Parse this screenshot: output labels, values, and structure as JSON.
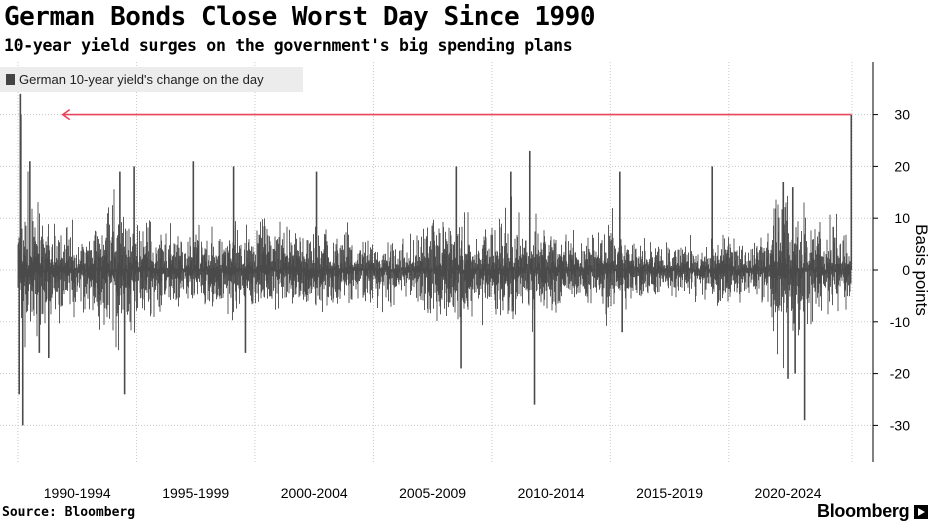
{
  "header": {
    "title": "German Bonds Close Worst Day Since 1990",
    "subtitle": "10-year yield surges on the government's big spending plans"
  },
  "footer": {
    "source": "Source: Bloomberg",
    "brand": "Bloomberg"
  },
  "colors": {
    "bars": "#4a4a4a",
    "arrow": "#e8445a",
    "grid": "#c8c8c8",
    "legend_bg": "#ececec"
  },
  "chart_data": {
    "type": "bar",
    "title": "German Bonds Close Worst Day Since 1990",
    "subtitle": "10-year yield surges on the government's big spending plans",
    "legend": [
      "German 10-year yield's change on the day"
    ],
    "ylabel": "Basis points",
    "ylim": [
      -37,
      40
    ],
    "yticks": [
      30,
      20,
      10,
      0,
      -10,
      -20,
      -30
    ],
    "x_categories": [
      "1990-1994",
      "1995-1999",
      "2000-2004",
      "2005-2009",
      "2010-2014",
      "2015-2019",
      "2020-2024"
    ],
    "x_range": [
      1990.0,
      2025.2
    ],
    "grid": true,
    "volatility_profile": [
      [
        1990.0,
        7
      ],
      [
        1990.5,
        11
      ],
      [
        1991.0,
        7
      ],
      [
        1992.0,
        5.5
      ],
      [
        1993.0,
        5
      ],
      [
        1994.0,
        9
      ],
      [
        1995.0,
        7.5
      ],
      [
        1996.0,
        5.5
      ],
      [
        1997.0,
        5
      ],
      [
        1998.0,
        5
      ],
      [
        1999.0,
        6
      ],
      [
        2000.0,
        5.5
      ],
      [
        2001.0,
        6
      ],
      [
        2002.0,
        6
      ],
      [
        2003.0,
        6
      ],
      [
        2004.0,
        5
      ],
      [
        2005.0,
        4
      ],
      [
        2006.0,
        4
      ],
      [
        2007.0,
        5
      ],
      [
        2008.0,
        7.5
      ],
      [
        2009.0,
        6.5
      ],
      [
        2010.0,
        6
      ],
      [
        2011.0,
        7.5
      ],
      [
        2012.0,
        5.5
      ],
      [
        2013.0,
        5.5
      ],
      [
        2014.0,
        4.5
      ],
      [
        2015.0,
        6.5
      ],
      [
        2016.0,
        4.5
      ],
      [
        2017.0,
        3.5
      ],
      [
        2018.0,
        3.5
      ],
      [
        2019.0,
        4
      ],
      [
        2020.0,
        5
      ],
      [
        2021.0,
        3
      ],
      [
        2022.0,
        9.5
      ],
      [
        2023.0,
        8
      ],
      [
        2024.0,
        5.5
      ],
      [
        2025.0,
        5
      ]
    ],
    "notable_moves": [
      {
        "date": 1990.05,
        "bp": -24
      },
      {
        "date": 1990.1,
        "bp": 34
      },
      {
        "date": 1990.12,
        "bp": 30
      },
      {
        "date": 1990.2,
        "bp": -30
      },
      {
        "date": 1990.5,
        "bp": 21
      },
      {
        "date": 1990.9,
        "bp": -16
      },
      {
        "date": 1991.3,
        "bp": -17
      },
      {
        "date": 1994.3,
        "bp": 19
      },
      {
        "date": 1994.5,
        "bp": -24
      },
      {
        "date": 1994.9,
        "bp": 20
      },
      {
        "date": 1997.4,
        "bp": 21
      },
      {
        "date": 1999.1,
        "bp": 20
      },
      {
        "date": 1999.6,
        "bp": -16
      },
      {
        "date": 2002.6,
        "bp": 19
      },
      {
        "date": 2008.5,
        "bp": 20
      },
      {
        "date": 2008.7,
        "bp": -19
      },
      {
        "date": 2010.8,
        "bp": 19
      },
      {
        "date": 2011.6,
        "bp": 23
      },
      {
        "date": 2011.8,
        "bp": -26
      },
      {
        "date": 2015.4,
        "bp": 19
      },
      {
        "date": 2015.5,
        "bp": -12
      },
      {
        "date": 2019.3,
        "bp": 20
      },
      {
        "date": 2022.3,
        "bp": 17
      },
      {
        "date": 2022.5,
        "bp": -21
      },
      {
        "date": 2022.7,
        "bp": 16
      },
      {
        "date": 2022.8,
        "bp": -20
      },
      {
        "date": 2023.2,
        "bp": -29
      },
      {
        "date": 2025.17,
        "bp": 30
      }
    ],
    "annotation": {
      "type": "arrow",
      "from_date": 2025.17,
      "to_date": 1990.2,
      "level_bp": 30
    }
  }
}
